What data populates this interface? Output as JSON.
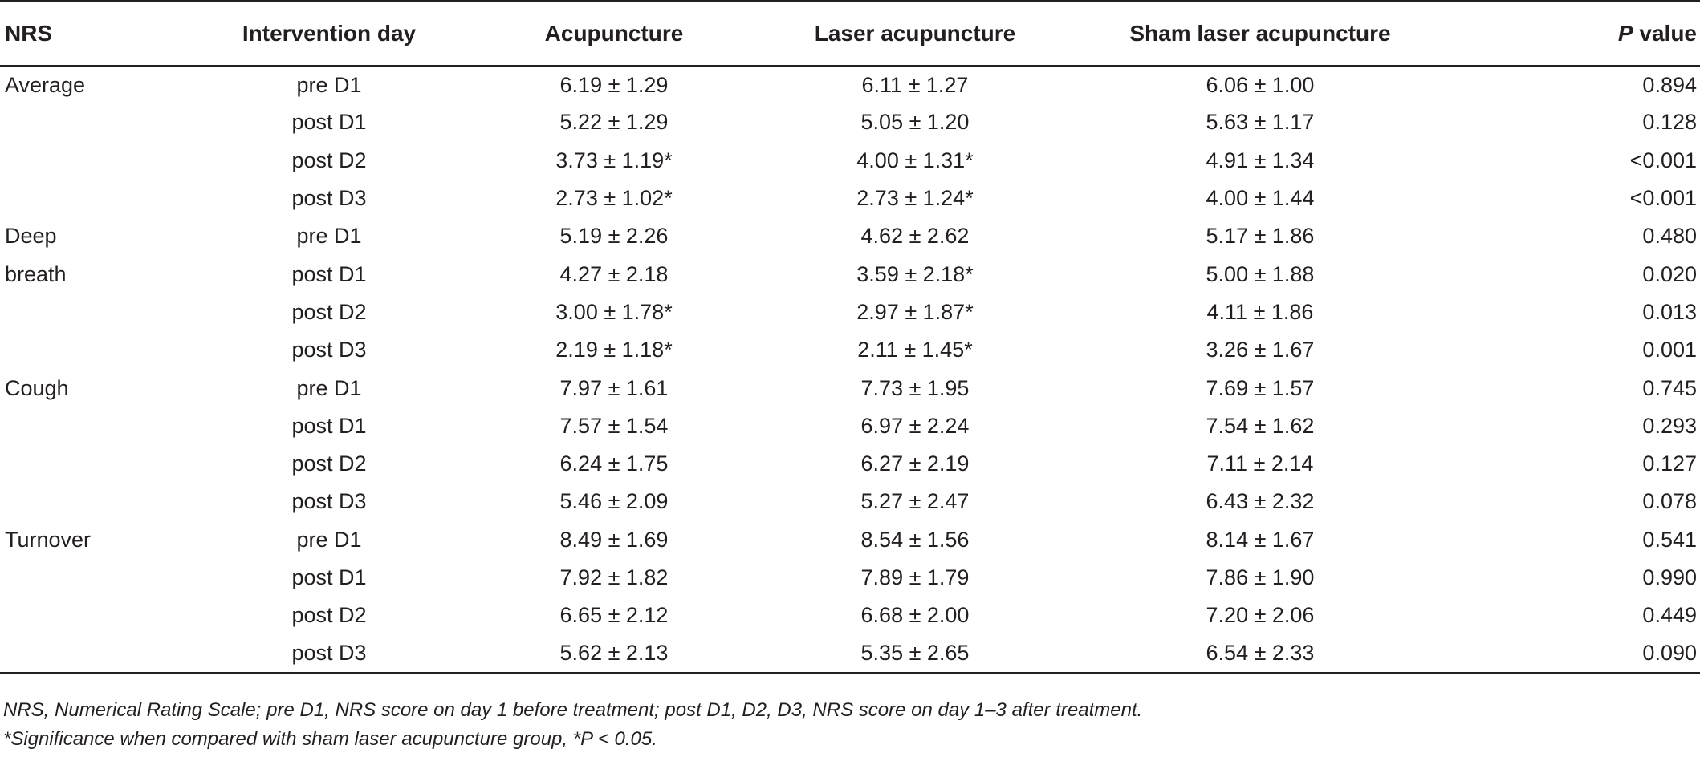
{
  "table": {
    "headers": {
      "nrs": "NRS",
      "day": "Intervention day",
      "acu": "Acupuncture",
      "laser": "Laser acupuncture",
      "sham": "Sham laser acupuncture",
      "p_italic": "P",
      "p_rest": " value"
    },
    "rows": [
      {
        "nrs": "Average",
        "day": "pre D1",
        "acu": "6.19 ± 1.29",
        "laser": "6.11 ± 1.27",
        "sham": "6.06 ± 1.00",
        "p": "0.894"
      },
      {
        "nrs": "",
        "day": "post D1",
        "acu": "5.22 ± 1.29",
        "laser": "5.05 ± 1.20",
        "sham": "5.63 ± 1.17",
        "p": "0.128"
      },
      {
        "nrs": "",
        "day": "post D2",
        "acu": "3.73 ± 1.19*",
        "laser": "4.00 ± 1.31*",
        "sham": "4.91 ± 1.34",
        "p": "<0.001"
      },
      {
        "nrs": "",
        "day": "post D3",
        "acu": "2.73 ± 1.02*",
        "laser": "2.73 ± 1.24*",
        "sham": "4.00 ± 1.44",
        "p": "<0.001"
      },
      {
        "nrs": "Deep",
        "day": "pre D1",
        "acu": "5.19 ± 2.26",
        "laser": "4.62 ± 2.62",
        "sham": "5.17 ± 1.86",
        "p": "0.480"
      },
      {
        "nrs": "breath",
        "day": "post D1",
        "acu": "4.27 ± 2.18",
        "laser": "3.59 ± 2.18*",
        "sham": "5.00 ± 1.88",
        "p": "0.020"
      },
      {
        "nrs": "",
        "day": "post D2",
        "acu": "3.00 ± 1.78*",
        "laser": "2.97 ± 1.87*",
        "sham": "4.11 ± 1.86",
        "p": "0.013"
      },
      {
        "nrs": "",
        "day": "post D3",
        "acu": "2.19 ± 1.18*",
        "laser": "2.11 ± 1.45*",
        "sham": "3.26 ± 1.67",
        "p": "0.001"
      },
      {
        "nrs": "Cough",
        "day": "pre D1",
        "acu": "7.97 ± 1.61",
        "laser": "7.73 ± 1.95",
        "sham": "7.69 ± 1.57",
        "p": "0.745"
      },
      {
        "nrs": "",
        "day": "post D1",
        "acu": "7.57 ± 1.54",
        "laser": "6.97 ± 2.24",
        "sham": "7.54 ± 1.62",
        "p": "0.293"
      },
      {
        "nrs": "",
        "day": "post D2",
        "acu": "6.24 ± 1.75",
        "laser": "6.27 ± 2.19",
        "sham": "7.11 ± 2.14",
        "p": "0.127"
      },
      {
        "nrs": "",
        "day": "post D3",
        "acu": "5.46 ± 2.09",
        "laser": "5.27 ± 2.47",
        "sham": "6.43 ± 2.32",
        "p": "0.078"
      },
      {
        "nrs": "Turnover",
        "day": "pre D1",
        "acu": "8.49 ± 1.69",
        "laser": "8.54 ± 1.56",
        "sham": "8.14 ± 1.67",
        "p": "0.541"
      },
      {
        "nrs": "",
        "day": "post D1",
        "acu": "7.92 ± 1.82",
        "laser": "7.89 ± 1.79",
        "sham": "7.86 ± 1.90",
        "p": "0.990"
      },
      {
        "nrs": "",
        "day": "post D2",
        "acu": "6.65 ± 2.12",
        "laser": "6.68 ± 2.00",
        "sham": "7.20 ± 2.06",
        "p": "0.449"
      },
      {
        "nrs": "",
        "day": "post D3",
        "acu": "5.62 ± 2.13",
        "laser": "5.35 ± 2.65",
        "sham": "6.54 ± 2.33",
        "p": "0.090"
      }
    ]
  },
  "footnotes": {
    "line1": "NRS, Numerical Rating Scale; pre D1, NRS score on day 1 before treatment; post D1, D2, D3, NRS score on day 1–3 after treatment.",
    "line2": "*Significance when compared with sham laser acupuncture group, *P < 0.05."
  }
}
